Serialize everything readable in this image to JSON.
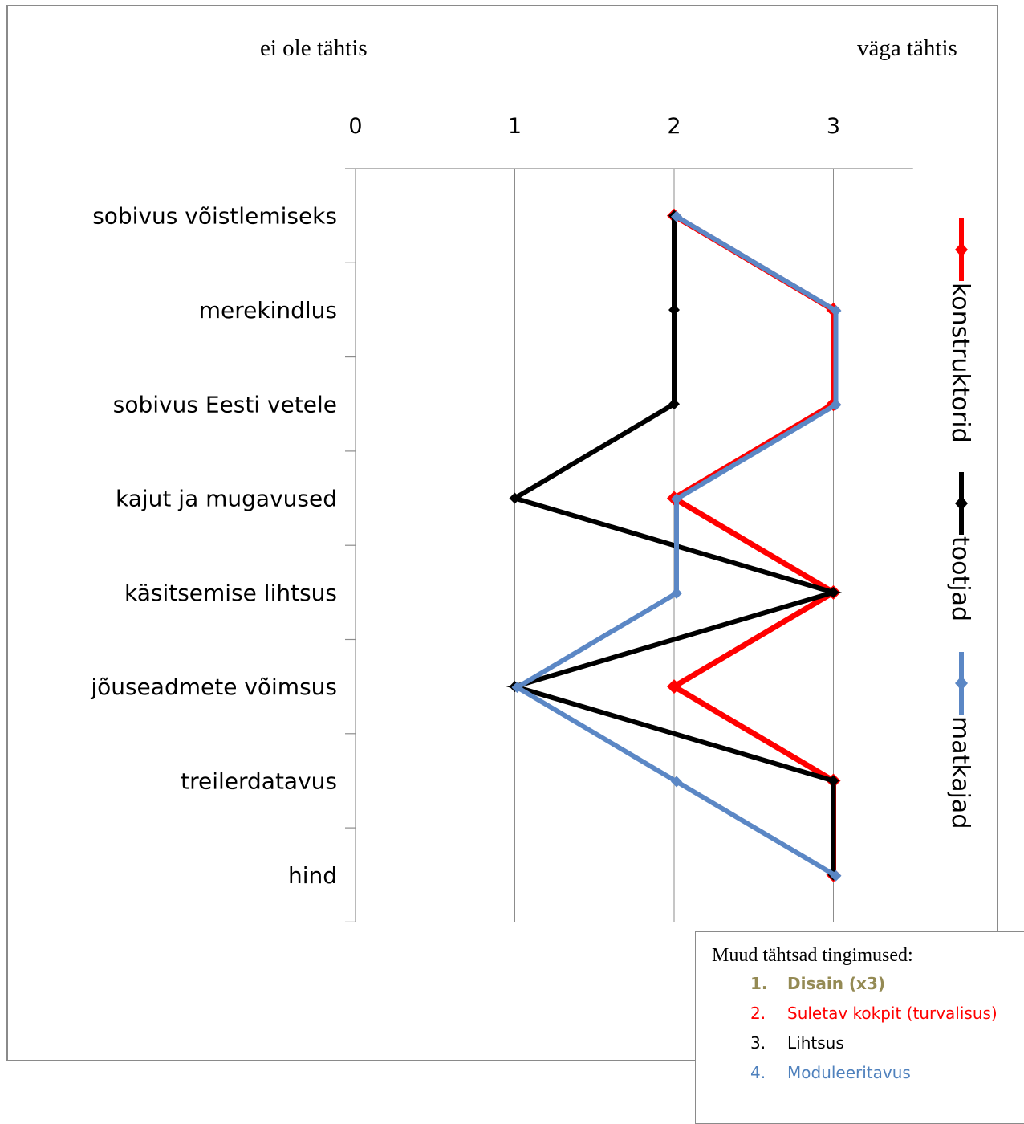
{
  "header": {
    "left_label": "ei ole tähtis",
    "right_label": "väga tähtis"
  },
  "chart_data": {
    "type": "line",
    "orientation": "horizontal-value-axis",
    "x_ticks": [
      "0",
      "1",
      "2",
      "3"
    ],
    "xlim": [
      0,
      3.5
    ],
    "categories": [
      "sobivus võistlemiseks",
      "merekindlus",
      "sobivus Eesti vetele",
      "kajut ja mugavused",
      "käsitsemise lihtsus",
      "jõuseadmete võimsus",
      "treilerdatavus",
      "hind"
    ],
    "series": [
      {
        "name": "konstruktorid",
        "color": "#ff0000",
        "values": [
          2,
          3,
          3,
          2,
          3,
          2,
          3,
          3
        ]
      },
      {
        "name": "tootjad",
        "color": "#000000",
        "values": [
          2,
          2,
          2,
          1,
          3,
          1,
          3,
          3
        ]
      },
      {
        "name": "matkajad",
        "color": "#5b87c5",
        "values": [
          2,
          3,
          3,
          2,
          2,
          1,
          2,
          3
        ]
      }
    ],
    "legend_position": "right, vertical text",
    "grid": true
  },
  "notes": {
    "title": "Muud tähtsad tingimused:",
    "items": [
      {
        "num": "1.",
        "text": "Disain (x3)",
        "color": "#948a54",
        "bold": true
      },
      {
        "num": "2.",
        "text": "Suletav kokpit (turvalisus)",
        "color": "#ff0000",
        "bold": false
      },
      {
        "num": "3.",
        "text": "Lihtsus",
        "color": "#000000",
        "bold": false
      },
      {
        "num": "4.",
        "text": "Moduleeritavus",
        "color": "#4f81bd",
        "bold": false
      }
    ]
  }
}
